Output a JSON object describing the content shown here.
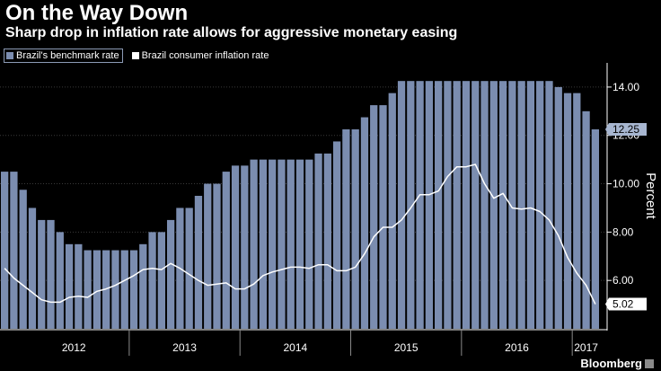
{
  "header": {
    "title": "On the Way Down",
    "subtitle": "Sharp drop in inflation rate allows for aggressive monetary easing"
  },
  "source": "Bloomberg",
  "chart_data": {
    "type": "bar",
    "title": "On the Way Down",
    "subtitle": "Sharp drop in inflation rate allows for aggressive monetary easing",
    "ylabel": "Percent",
    "xlabel": "",
    "ylim": [
      4.0,
      15.0
    ],
    "yticks": [
      6.0,
      8.0,
      10.0,
      12.0,
      14.0
    ],
    "ytick_labels": [
      "6.00",
      "8.00",
      "10.00",
      "12.00",
      "14.00"
    ],
    "x_labels": [
      "2012",
      "2013",
      "2014",
      "2015",
      "2016",
      "2017"
    ],
    "legend": {
      "placement": "top-left"
    },
    "colors": {
      "bars": "#7b8db0",
      "line": "#ffffff",
      "background": "#000000",
      "grid": "#3a3a3a"
    },
    "series": [
      {
        "name": "Brazil's benchmark rate",
        "type": "bar",
        "start": "2011-11",
        "values": [
          10.5,
          10.5,
          9.75,
          9.0,
          8.5,
          8.5,
          8.0,
          7.5,
          7.5,
          7.25,
          7.25,
          7.25,
          7.25,
          7.25,
          7.25,
          7.5,
          8.0,
          8.0,
          8.5,
          9.0,
          9.0,
          9.5,
          10.0,
          10.0,
          10.5,
          10.75,
          10.75,
          11.0,
          11.0,
          11.0,
          11.0,
          11.0,
          11.0,
          11.0,
          11.25,
          11.25,
          11.75,
          12.25,
          12.25,
          12.75,
          13.25,
          13.25,
          13.75,
          14.25,
          14.25,
          14.25,
          14.25,
          14.25,
          14.25,
          14.25,
          14.25,
          14.25,
          14.25,
          14.25,
          14.25,
          14.25,
          14.25,
          14.25,
          14.25,
          14.25,
          14.0,
          13.75,
          13.75,
          13.0,
          12.25
        ]
      },
      {
        "name": "Brazil consumer inflation rate",
        "type": "line",
        "start": "2011-11",
        "values": [
          6.5,
          6.1,
          5.8,
          5.5,
          5.2,
          5.1,
          5.1,
          5.3,
          5.35,
          5.3,
          5.55,
          5.65,
          5.8,
          6.0,
          6.2,
          6.45,
          6.5,
          6.45,
          6.7,
          6.5,
          6.25,
          6.0,
          5.8,
          5.85,
          5.9,
          5.65,
          5.65,
          5.85,
          6.2,
          6.35,
          6.45,
          6.55,
          6.55,
          6.5,
          6.65,
          6.65,
          6.4,
          6.4,
          6.55,
          7.1,
          7.8,
          8.2,
          8.2,
          8.5,
          9.0,
          9.55,
          9.55,
          9.7,
          10.3,
          10.7,
          10.7,
          10.8,
          10.0,
          9.4,
          9.6,
          9.0,
          8.95,
          9.0,
          8.85,
          8.5,
          7.85,
          6.95,
          6.3,
          5.8,
          5.02
        ]
      }
    ],
    "annotations": [
      {
        "series": "Brazil's benchmark rate",
        "value": 12.25,
        "label": "12.25"
      },
      {
        "series": "Brazil consumer inflation rate",
        "value": 5.02,
        "label": "5.02"
      }
    ]
  }
}
